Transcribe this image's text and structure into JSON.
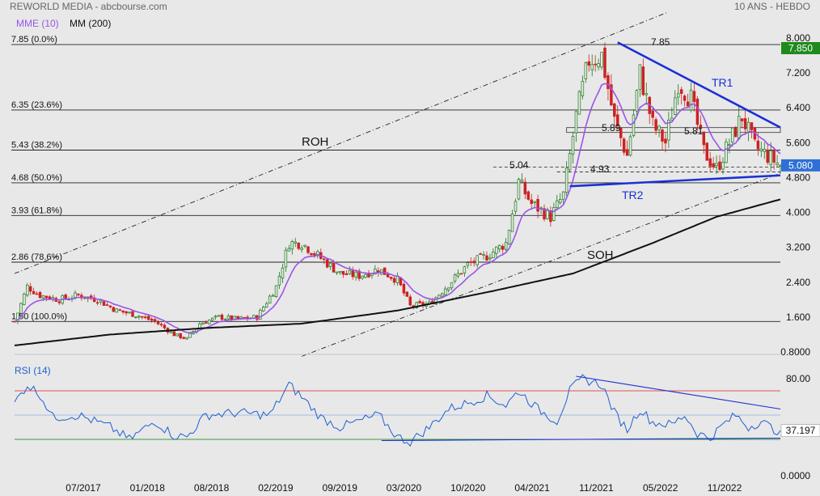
{
  "header": {
    "title": "REWORLD MEDIA - abcbourse.com",
    "period": "10 ANS - HEBDO",
    "legend_mme": "MME (10)",
    "legend_mm": "MM (200)"
  },
  "colors": {
    "background": "#e8e8e8",
    "candle_up": "#1a7a1a",
    "candle_down": "#cc2222",
    "mme": "#9a55e6",
    "mm": "#111111",
    "trend": "#1a2fd6",
    "rsi": "#1f5fd0",
    "price_badge": "#2f6fd6",
    "high_badge": "#1e8a1e"
  },
  "chart_data": [
    {
      "type": "candlestick",
      "name": "price",
      "ylim": [
        0.8,
        8.0
      ],
      "y_ticks": [
        "8.000",
        "7.200",
        "6.400",
        "5.600",
        "4.800",
        "4.000",
        "3.200",
        "2.400",
        "1.600",
        "0.8000"
      ],
      "y_tick_values": [
        8.0,
        7.2,
        6.4,
        5.6,
        4.8,
        4.0,
        3.2,
        2.4,
        1.6,
        0.8
      ],
      "x_ticks": [
        "07/2017",
        "01/2018",
        "08/2018",
        "02/2019",
        "09/2019",
        "03/2020",
        "10/2020",
        "04/2021",
        "11/2021",
        "05/2022",
        "11/2022"
      ],
      "last_price": "5.080",
      "last_price_value": 5.08,
      "high_badge": "7.850",
      "high_badge_value": 7.85,
      "fib_levels": [
        {
          "label": "7.85  (0.0%)",
          "value": 7.85
        },
        {
          "label": "6.35  (23.6%)",
          "value": 6.35
        },
        {
          "label": "5.43  (38.2%)",
          "value": 5.43
        },
        {
          "label": "4.68  (50.0%)",
          "value": 4.68
        },
        {
          "label": "3.93  (61.8%)",
          "value": 3.93
        },
        {
          "label": "2.86  (78.6%)",
          "value": 2.86
        },
        {
          "label": "1.50  (100.0%)",
          "value": 1.5
        }
      ],
      "price_annotations": [
        {
          "label": "7.85",
          "value": 7.85
        },
        {
          "label": "5.89",
          "value": 5.89
        },
        {
          "label": "5.81",
          "value": 5.81
        },
        {
          "label": "5.04",
          "value": 5.04
        },
        {
          "label": "4.93",
          "value": 4.93
        }
      ],
      "text_annotations": [
        "ROH",
        "SOH",
        "TR1",
        "TR2"
      ],
      "waypoints": [
        {
          "x": 0,
          "y": 1.5
        },
        {
          "x": 4,
          "y": 2.3
        },
        {
          "x": 8,
          "y": 2.1
        },
        {
          "x": 14,
          "y": 2.0
        },
        {
          "x": 20,
          "y": 2.1
        },
        {
          "x": 26,
          "y": 2.0
        },
        {
          "x": 32,
          "y": 1.75
        },
        {
          "x": 38,
          "y": 1.65
        },
        {
          "x": 44,
          "y": 1.5
        },
        {
          "x": 50,
          "y": 1.2
        },
        {
          "x": 54,
          "y": 1.1
        },
        {
          "x": 58,
          "y": 1.45
        },
        {
          "x": 64,
          "y": 1.6
        },
        {
          "x": 70,
          "y": 1.55
        },
        {
          "x": 76,
          "y": 1.6
        },
        {
          "x": 82,
          "y": 2.3
        },
        {
          "x": 86,
          "y": 3.3
        },
        {
          "x": 90,
          "y": 3.3
        },
        {
          "x": 96,
          "y": 2.95
        },
        {
          "x": 102,
          "y": 2.6
        },
        {
          "x": 108,
          "y": 2.55
        },
        {
          "x": 114,
          "y": 2.7
        },
        {
          "x": 120,
          "y": 2.45
        },
        {
          "x": 124,
          "y": 1.85
        },
        {
          "x": 130,
          "y": 1.9
        },
        {
          "x": 136,
          "y": 2.35
        },
        {
          "x": 142,
          "y": 2.8
        },
        {
          "x": 148,
          "y": 3.0
        },
        {
          "x": 154,
          "y": 3.3
        },
        {
          "x": 158,
          "y": 4.7
        },
        {
          "x": 162,
          "y": 4.2
        },
        {
          "x": 168,
          "y": 3.9
        },
        {
          "x": 172,
          "y": 4.4
        },
        {
          "x": 176,
          "y": 6.2
        },
        {
          "x": 180,
          "y": 7.5
        },
        {
          "x": 184,
          "y": 7.6
        },
        {
          "x": 188,
          "y": 6.1
        },
        {
          "x": 192,
          "y": 5.3
        },
        {
          "x": 196,
          "y": 7.2
        },
        {
          "x": 200,
          "y": 6.0
        },
        {
          "x": 204,
          "y": 5.6
        },
        {
          "x": 208,
          "y": 7.0
        },
        {
          "x": 212,
          "y": 6.6
        },
        {
          "x": 216,
          "y": 5.4
        },
        {
          "x": 220,
          "y": 5.0
        },
        {
          "x": 224,
          "y": 5.6
        },
        {
          "x": 228,
          "y": 6.2
        },
        {
          "x": 232,
          "y": 5.5
        },
        {
          "x": 236,
          "y": 5.3
        },
        {
          "x": 240,
          "y": 5.08
        }
      ],
      "mm200": [
        {
          "x": 0,
          "y": 0.95
        },
        {
          "x": 30,
          "y": 1.2
        },
        {
          "x": 60,
          "y": 1.35
        },
        {
          "x": 90,
          "y": 1.45
        },
        {
          "x": 120,
          "y": 1.75
        },
        {
          "x": 150,
          "y": 2.2
        },
        {
          "x": 175,
          "y": 2.6
        },
        {
          "x": 200,
          "y": 3.3
        },
        {
          "x": 220,
          "y": 3.9
        },
        {
          "x": 240,
          "y": 4.3
        }
      ],
      "trendlines": [
        {
          "name": "ROH",
          "x1": 0,
          "y1": 2.6,
          "x2": 205,
          "y2": 8.6
        },
        {
          "name": "SOH",
          "x1": 90,
          "y1": 0.7,
          "x2": 240,
          "y2": 4.9
        },
        {
          "name": "TR1",
          "x1": 189,
          "y1": 7.9,
          "x2": 240,
          "y2": 5.95
        },
        {
          "name": "TR2",
          "x1": 174,
          "y1": 4.6,
          "x2": 240,
          "y2": 4.85
        }
      ]
    },
    {
      "type": "line",
      "name": "RSI (14)",
      "ylim": [
        0,
        100
      ],
      "y_ticks": [
        "80.00",
        "0.0000"
      ],
      "y_tick_values": [
        80,
        0
      ],
      "overbought": 70,
      "oversold": 30,
      "last_value": "37.197",
      "last_value_num": 37.197,
      "waypoints": [
        {
          "x": 0,
          "y": 60
        },
        {
          "x": 4,
          "y": 75
        },
        {
          "x": 8,
          "y": 67
        },
        {
          "x": 12,
          "y": 48
        },
        {
          "x": 20,
          "y": 50
        },
        {
          "x": 30,
          "y": 40
        },
        {
          "x": 36,
          "y": 30
        },
        {
          "x": 44,
          "y": 45
        },
        {
          "x": 50,
          "y": 33
        },
        {
          "x": 54,
          "y": 32
        },
        {
          "x": 60,
          "y": 50
        },
        {
          "x": 70,
          "y": 52
        },
        {
          "x": 80,
          "y": 50
        },
        {
          "x": 86,
          "y": 75
        },
        {
          "x": 90,
          "y": 65
        },
        {
          "x": 96,
          "y": 48
        },
        {
          "x": 102,
          "y": 40
        },
        {
          "x": 108,
          "y": 45
        },
        {
          "x": 114,
          "y": 50
        },
        {
          "x": 120,
          "y": 32
        },
        {
          "x": 124,
          "y": 28
        },
        {
          "x": 130,
          "y": 40
        },
        {
          "x": 136,
          "y": 55
        },
        {
          "x": 142,
          "y": 60
        },
        {
          "x": 148,
          "y": 66
        },
        {
          "x": 154,
          "y": 58
        },
        {
          "x": 158,
          "y": 70
        },
        {
          "x": 164,
          "y": 55
        },
        {
          "x": 170,
          "y": 45
        },
        {
          "x": 174,
          "y": 70
        },
        {
          "x": 178,
          "y": 80
        },
        {
          "x": 184,
          "y": 75
        },
        {
          "x": 188,
          "y": 52
        },
        {
          "x": 192,
          "y": 38
        },
        {
          "x": 196,
          "y": 55
        },
        {
          "x": 200,
          "y": 44
        },
        {
          "x": 206,
          "y": 42
        },
        {
          "x": 210,
          "y": 50
        },
        {
          "x": 214,
          "y": 35
        },
        {
          "x": 218,
          "y": 31
        },
        {
          "x": 222,
          "y": 42
        },
        {
          "x": 226,
          "y": 50
        },
        {
          "x": 230,
          "y": 40
        },
        {
          "x": 234,
          "y": 45
        },
        {
          "x": 238,
          "y": 38
        },
        {
          "x": 240,
          "y": 37.197
        }
      ],
      "trendlines": [
        {
          "x1": 176,
          "y1": 82,
          "x2": 240,
          "y2": 55
        },
        {
          "x1": 115,
          "y1": 29,
          "x2": 240,
          "y2": 31
        }
      ]
    }
  ]
}
